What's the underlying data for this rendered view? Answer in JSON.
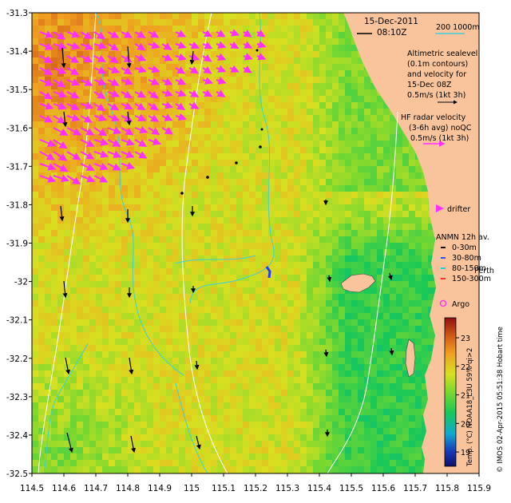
{
  "header": {
    "date": "15-Dec-2011",
    "time": "08:10Z",
    "scale_label": "200  1000m"
  },
  "legend": {
    "altimetry": [
      "Altimetric sealevel",
      "(0.1m contours)",
      "and velocity for",
      "15-Dec 08Z",
      "0.5m/s (1kt 3h)"
    ],
    "hf_radar": [
      "HF radar velocity",
      "(3-6h avg) noQC",
      "0.5m/s (1kt 3h)"
    ],
    "drifter": "drifter",
    "anmn_title": "ANMN 12h av.",
    "anmn_depths": [
      {
        "label": "0-30m",
        "color": "#000000"
      },
      {
        "label": "30-80m",
        "color": "#1e3cff"
      },
      {
        "label": "80-150m",
        "color": "#00d8e0"
      },
      {
        "label": "150-300m",
        "color": "#ff2020"
      }
    ],
    "place_label": "Perth",
    "argo": "Argo"
  },
  "colorbar": {
    "label": "Temp. (°C) NOAA18_L3U 59% qi>2",
    "ticks": [
      "19",
      "20",
      "21",
      "22",
      "23"
    ],
    "range": [
      18.5,
      23.7
    ]
  },
  "credit": "© IMOS 02-Apr-2015 05:51:38 Hobart time",
  "axes": {
    "x_ticks": [
      "114.5",
      "114.6",
      "114.7",
      "114.8",
      "114.9",
      "115",
      "115.1",
      "115.2",
      "115.3",
      "115.4",
      "115.5",
      "115.6",
      "115.7",
      "115.8",
      "115.9"
    ],
    "y_ticks": [
      "-31.3",
      "-31.4",
      "-31.5",
      "-31.6",
      "-31.7",
      "-31.8",
      "-31.9",
      "-32",
      "-32.1",
      "-32.2",
      "-32.3",
      "-32.4",
      "-32.5"
    ],
    "xlim": [
      114.5,
      115.9
    ],
    "ylim": [
      -32.5,
      -31.3
    ]
  },
  "colors": {
    "land": "#f9c49c",
    "radar_arrow": "#ff30ff",
    "contour": "#40d0d8",
    "isobath": "#ffffff"
  }
}
